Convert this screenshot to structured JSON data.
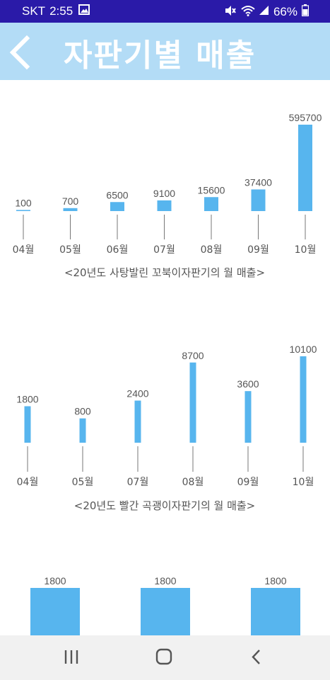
{
  "status_bar": {
    "carrier": "SKT",
    "time": "2:55",
    "battery": "66%",
    "icons": [
      "gallery-icon",
      "mute-icon",
      "wifi-icon",
      "signal-icon",
      "battery-icon"
    ]
  },
  "header": {
    "title": "자판기별 매출",
    "background": "#b3dcf6",
    "back_icon": "chevron-left-icon"
  },
  "colors": {
    "bar": "#57b5ee",
    "label": "#555555",
    "tick": "#777777"
  },
  "chart_data": [
    {
      "type": "bar",
      "categories": [
        "04월",
        "05월",
        "06월",
        "07월",
        "08월",
        "09월",
        "10월"
      ],
      "values": [
        100,
        700,
        6500,
        9100,
        15600,
        37400,
        595700
      ],
      "data_labels": [
        "100",
        "700",
        "6500",
        "9100",
        "15600",
        "37400",
        "595700"
      ],
      "caption": "<20년도 사탕발린 꼬북이자판기의 월 매출>"
    },
    {
      "type": "bar",
      "categories": [
        "04월",
        "05월",
        "07월",
        "08월",
        "09월",
        "10월"
      ],
      "values": [
        1800,
        800,
        2400,
        8700,
        3600,
        10100
      ],
      "data_labels": [
        "1800",
        "800",
        "2400",
        "8700",
        "3600",
        "10100"
      ],
      "caption": "<20년도 빨간 곡괭이자판기의 월 매출>"
    },
    {
      "type": "bar",
      "categories": [
        "",
        "",
        ""
      ],
      "values": [
        1800,
        1800,
        1800
      ],
      "data_labels": [
        "1800",
        "1800",
        "1800"
      ],
      "caption": ""
    }
  ],
  "nav_bar": {
    "buttons": [
      "recent-apps-icon",
      "home-icon",
      "back-icon"
    ]
  }
}
